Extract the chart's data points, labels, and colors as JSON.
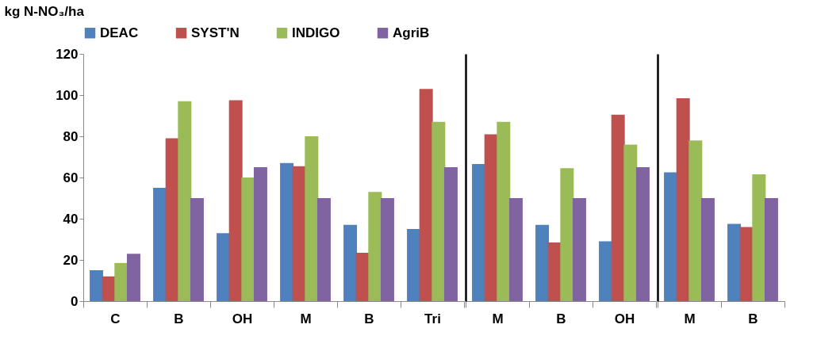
{
  "chart_data": [
    {
      "type": "bar",
      "ylabel": "kg N-NO₃/ha",
      "categories": [
        "C",
        "B",
        "OH",
        "M",
        "B",
        "Tri"
      ],
      "ylim": [
        0,
        120
      ],
      "yticks": [
        0,
        20,
        40,
        60,
        80,
        100,
        120
      ],
      "legend": "top",
      "series": [
        {
          "name": "DEAC",
          "color": "#4f81bd",
          "values": [
            15,
            55,
            33,
            67,
            37,
            35
          ]
        },
        {
          "name": "SYST'N",
          "color": "#c0504d",
          "values": [
            12,
            79,
            97.5,
            65.5,
            23.5,
            103
          ]
        },
        {
          "name": "INDIGO",
          "color": "#9bbb59",
          "values": [
            18.5,
            97,
            60,
            80,
            53,
            87
          ]
        },
        {
          "name": "AgriB",
          "color": "#8064a2",
          "values": [
            23,
            50,
            65,
            50,
            50,
            65
          ]
        }
      ]
    },
    {
      "type": "bar",
      "categories": [
        "M",
        "B",
        "OH"
      ],
      "ylim": [
        0,
        120
      ],
      "yticks": [
        0,
        20,
        40,
        60,
        80,
        100,
        120
      ],
      "tick_labels": "x",
      "series": [
        {
          "name": "DEAC",
          "color": "#4f81bd",
          "values": [
            66.5,
            37,
            29
          ]
        },
        {
          "name": "SYST'N",
          "color": "#c0504d",
          "values": [
            81,
            28.5,
            90.5
          ]
        },
        {
          "name": "INDIGO",
          "color": "#9bbb59",
          "values": [
            87,
            64.5,
            76
          ]
        },
        {
          "name": "AgriB",
          "color": "#8064a2",
          "values": [
            50,
            50,
            65
          ]
        }
      ]
    },
    {
      "type": "bar",
      "categories": [
        "M",
        "B"
      ],
      "ylim": [
        0,
        120
      ],
      "yticks": [
        0,
        20,
        40,
        60,
        80,
        100,
        120
      ],
      "tick_labels": "x",
      "series": [
        {
          "name": "DEAC",
          "color": "#4f81bd",
          "values": [
            62.5,
            37.5
          ]
        },
        {
          "name": "SYST'N",
          "color": "#c0504d",
          "values": [
            98.5,
            36
          ]
        },
        {
          "name": "INDIGO",
          "color": "#9bbb59",
          "values": [
            78,
            61.5
          ]
        },
        {
          "name": "AgriB",
          "color": "#8064a2",
          "values": [
            50,
            50
          ]
        }
      ]
    }
  ]
}
